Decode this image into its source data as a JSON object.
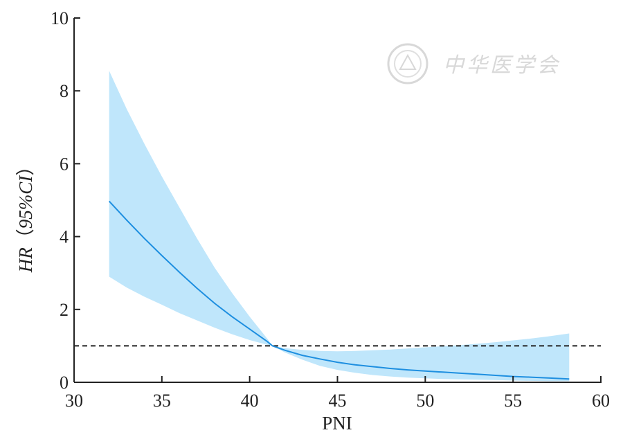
{
  "chart_data": {
    "type": "line",
    "title": "",
    "xlabel": "PNI",
    "ylabel_parts": {
      "a": "HR",
      "b": "（",
      "c": "95%",
      "d": "CI",
      "e": "）"
    },
    "xlim": [
      30,
      60
    ],
    "ylim": [
      0,
      10
    ],
    "xticks": [
      30,
      35,
      40,
      45,
      50,
      55,
      60
    ],
    "yticks": [
      0,
      2,
      4,
      6,
      8,
      10
    ],
    "grid": false,
    "reference_line": {
      "y": 1,
      "style": "dashed"
    },
    "series": [
      {
        "x": [
          32,
          33,
          34,
          35,
          36,
          37,
          38,
          39,
          40,
          41,
          41.3,
          42,
          43,
          44,
          45,
          46,
          47,
          48,
          49,
          50,
          51,
          52,
          53,
          54,
          55,
          56,
          57,
          58.2
        ],
        "y": [
          4.97,
          4.45,
          3.95,
          3.48,
          3.02,
          2.58,
          2.17,
          1.8,
          1.46,
          1.12,
          1.0,
          0.88,
          0.74,
          0.64,
          0.55,
          0.48,
          0.43,
          0.38,
          0.34,
          0.31,
          0.28,
          0.25,
          0.22,
          0.19,
          0.16,
          0.14,
          0.12,
          0.09
        ],
        "lower": [
          2.9,
          2.6,
          2.35,
          2.13,
          1.9,
          1.7,
          1.5,
          1.32,
          1.16,
          1.03,
          1.0,
          0.82,
          0.62,
          0.45,
          0.34,
          0.26,
          0.2,
          0.16,
          0.13,
          0.11,
          0.09,
          0.08,
          0.07,
          0.06,
          0.05,
          0.04,
          0.03,
          0.03
        ],
        "upper": [
          8.55,
          7.5,
          6.55,
          5.65,
          4.8,
          3.95,
          3.15,
          2.45,
          1.8,
          1.2,
          1.0,
          0.94,
          0.89,
          0.86,
          0.85,
          0.86,
          0.88,
          0.9,
          0.93,
          0.96,
          0.99,
          1.02,
          1.06,
          1.1,
          1.15,
          1.2,
          1.26,
          1.34
        ],
        "color": "#1e8fe0",
        "band_color": "#bfe6fb"
      }
    ]
  },
  "watermark": {
    "text": "中华医学会"
  }
}
